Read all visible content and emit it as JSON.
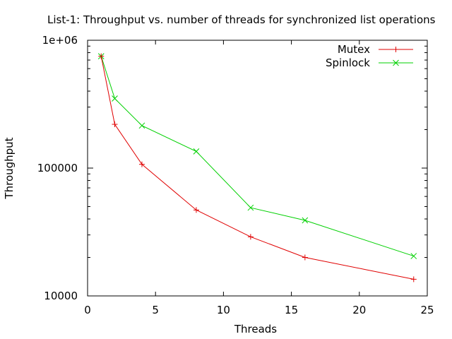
{
  "chart_data": {
    "type": "line",
    "title": "List-1: Throughput vs. number of threads for synchronized list operations",
    "xlabel": "Threads",
    "ylabel": "Throughput",
    "xlim": [
      0,
      25
    ],
    "ylim": [
      10000,
      1000000
    ],
    "yscale": "log",
    "x_ticks": [
      0,
      5,
      10,
      15,
      20,
      25
    ],
    "x_tick_labels": [
      "0",
      "5",
      "10",
      "15",
      "20",
      "25"
    ],
    "y_ticks": [
      10000,
      100000,
      1000000
    ],
    "y_tick_labels": [
      "10000",
      "100000",
      "1e+06"
    ],
    "legend_position": "top-right",
    "grid": false,
    "series": [
      {
        "name": "Mutex",
        "color": "#e00000",
        "marker": "plus",
        "x": [
          1,
          2,
          4,
          8,
          12,
          16,
          24
        ],
        "y": [
          750000,
          220000,
          107000,
          47000,
          29000,
          20000,
          13500
        ]
      },
      {
        "name": "Spinlock",
        "color": "#00d000",
        "marker": "cross",
        "x": [
          1,
          2,
          4,
          8,
          12,
          16,
          24
        ],
        "y": [
          750000,
          350000,
          215000,
          135000,
          49000,
          39000,
          20500
        ]
      }
    ]
  }
}
